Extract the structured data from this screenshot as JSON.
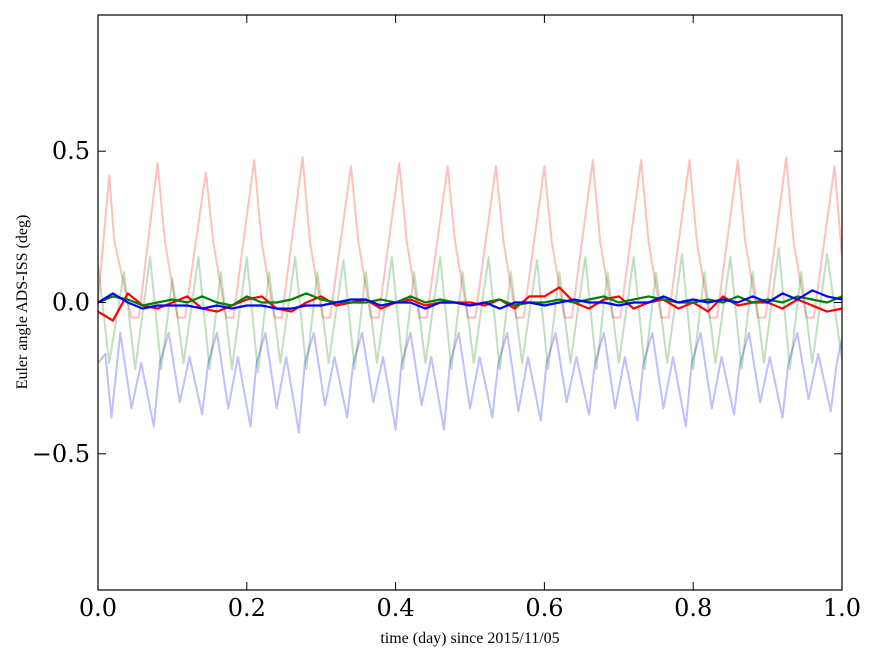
{
  "chart_data": {
    "type": "line",
    "xlabel": "time (day) since 2015/11/05",
    "ylabel": "Euler angle ADS-ISS (deg)",
    "xlim": [
      0.0,
      1.0
    ],
    "ylim": [
      -0.95,
      0.95
    ],
    "xticks": [
      {
        "value": 0.0,
        "label": "0.0"
      },
      {
        "value": 0.2,
        "label": "0.2"
      },
      {
        "value": 0.4,
        "label": "0.4"
      },
      {
        "value": 0.6,
        "label": "0.6"
      },
      {
        "value": 0.8,
        "label": "0.8"
      },
      {
        "value": 1.0,
        "label": "1.0"
      }
    ],
    "yticks": [
      {
        "value": 0.5,
        "label": "0.5"
      },
      {
        "value": 0.0,
        "label": "0.0"
      },
      {
        "value": -0.5,
        "label": "−0.5"
      }
    ],
    "grid": false,
    "series": [
      {
        "color": "#ff0000",
        "opacity": 0.25,
        "x": [
          0.0,
          0.015,
          0.022,
          0.045,
          0.055,
          0.08,
          0.09,
          0.107,
          0.117,
          0.145,
          0.155,
          0.172,
          0.182,
          0.21,
          0.22,
          0.237,
          0.247,
          0.275,
          0.285,
          0.302,
          0.312,
          0.34,
          0.35,
          0.367,
          0.377,
          0.405,
          0.415,
          0.432,
          0.442,
          0.47,
          0.48,
          0.497,
          0.507,
          0.535,
          0.545,
          0.562,
          0.572,
          0.6,
          0.61,
          0.627,
          0.637,
          0.665,
          0.675,
          0.692,
          0.702,
          0.73,
          0.74,
          0.757,
          0.767,
          0.795,
          0.805,
          0.822,
          0.832,
          0.86,
          0.87,
          0.887,
          0.897,
          0.925,
          0.935,
          0.952,
          0.962,
          0.99,
          1.0
        ],
        "y": [
          0.0,
          0.42,
          0.2,
          -0.05,
          -0.05,
          0.46,
          0.2,
          -0.05,
          -0.05,
          0.43,
          0.2,
          -0.05,
          -0.05,
          0.47,
          0.2,
          -0.05,
          -0.05,
          0.48,
          0.2,
          -0.05,
          -0.05,
          0.45,
          0.2,
          -0.05,
          -0.05,
          0.46,
          0.2,
          -0.05,
          -0.05,
          0.45,
          0.2,
          -0.05,
          -0.05,
          0.45,
          0.2,
          -0.05,
          -0.05,
          0.45,
          0.2,
          -0.05,
          -0.05,
          0.47,
          0.2,
          -0.05,
          -0.05,
          0.47,
          0.2,
          -0.05,
          -0.05,
          0.47,
          0.2,
          -0.05,
          -0.05,
          0.47,
          0.2,
          -0.05,
          -0.05,
          0.48,
          0.2,
          -0.05,
          -0.05,
          0.45,
          0.15
        ]
      },
      {
        "color": "#008000",
        "opacity": 0.25,
        "x": [
          0.0,
          0.015,
          0.035,
          0.05,
          0.07,
          0.085,
          0.1,
          0.115,
          0.135,
          0.15,
          0.165,
          0.18,
          0.2,
          0.215,
          0.23,
          0.245,
          0.265,
          0.28,
          0.295,
          0.31,
          0.33,
          0.345,
          0.36,
          0.375,
          0.395,
          0.41,
          0.425,
          0.44,
          0.46,
          0.475,
          0.49,
          0.505,
          0.525,
          0.54,
          0.555,
          0.57,
          0.59,
          0.605,
          0.62,
          0.635,
          0.655,
          0.67,
          0.685,
          0.7,
          0.72,
          0.735,
          0.75,
          0.765,
          0.785,
          0.8,
          0.815,
          0.83,
          0.85,
          0.865,
          0.88,
          0.895,
          0.915,
          0.93,
          0.945,
          0.96,
          0.98,
          1.0
        ],
        "y": [
          0.13,
          -0.2,
          0.1,
          -0.22,
          0.15,
          -0.22,
          0.08,
          -0.2,
          0.15,
          -0.22,
          0.1,
          -0.22,
          0.15,
          -0.23,
          0.1,
          -0.2,
          0.15,
          -0.22,
          0.1,
          -0.2,
          0.14,
          -0.22,
          0.1,
          -0.2,
          0.15,
          -0.22,
          0.1,
          -0.2,
          0.15,
          -0.22,
          0.1,
          -0.2,
          0.15,
          -0.22,
          0.1,
          -0.2,
          0.14,
          -0.22,
          0.1,
          -0.2,
          0.15,
          -0.22,
          0.1,
          -0.2,
          0.15,
          -0.22,
          0.1,
          -0.2,
          0.16,
          -0.22,
          0.1,
          -0.2,
          0.15,
          -0.22,
          0.1,
          -0.2,
          0.18,
          -0.22,
          0.1,
          -0.2,
          0.16,
          -0.19
        ]
      },
      {
        "color": "#0000ff",
        "opacity": 0.25,
        "x": [
          0.0,
          0.01,
          0.018,
          0.03,
          0.045,
          0.058,
          0.075,
          0.083,
          0.095,
          0.11,
          0.123,
          0.14,
          0.148,
          0.16,
          0.175,
          0.188,
          0.205,
          0.213,
          0.225,
          0.24,
          0.253,
          0.27,
          0.278,
          0.29,
          0.305,
          0.318,
          0.335,
          0.343,
          0.355,
          0.37,
          0.383,
          0.4,
          0.408,
          0.42,
          0.435,
          0.448,
          0.465,
          0.473,
          0.485,
          0.5,
          0.513,
          0.53,
          0.538,
          0.55,
          0.565,
          0.578,
          0.595,
          0.603,
          0.615,
          0.63,
          0.643,
          0.66,
          0.668,
          0.68,
          0.695,
          0.708,
          0.725,
          0.733,
          0.745,
          0.76,
          0.773,
          0.79,
          0.798,
          0.81,
          0.825,
          0.838,
          0.855,
          0.863,
          0.875,
          0.89,
          0.903,
          0.92,
          0.928,
          0.94,
          0.955,
          0.968,
          0.985,
          0.993,
          1.0
        ],
        "y": [
          -0.2,
          -0.17,
          -0.38,
          -0.1,
          -0.35,
          -0.2,
          -0.41,
          -0.2,
          -0.1,
          -0.33,
          -0.18,
          -0.37,
          -0.2,
          -0.1,
          -0.35,
          -0.18,
          -0.41,
          -0.2,
          -0.1,
          -0.35,
          -0.18,
          -0.43,
          -0.2,
          -0.1,
          -0.34,
          -0.18,
          -0.38,
          -0.2,
          -0.1,
          -0.33,
          -0.18,
          -0.42,
          -0.2,
          -0.1,
          -0.34,
          -0.18,
          -0.42,
          -0.2,
          -0.1,
          -0.35,
          -0.18,
          -0.38,
          -0.2,
          -0.1,
          -0.36,
          -0.18,
          -0.39,
          -0.2,
          -0.1,
          -0.33,
          -0.18,
          -0.37,
          -0.2,
          -0.1,
          -0.35,
          -0.18,
          -0.39,
          -0.2,
          -0.1,
          -0.35,
          -0.18,
          -0.41,
          -0.2,
          -0.1,
          -0.35,
          -0.18,
          -0.37,
          -0.2,
          -0.1,
          -0.33,
          -0.18,
          -0.38,
          -0.2,
          -0.1,
          -0.32,
          -0.17,
          -0.36,
          -0.2,
          -0.12
        ]
      },
      {
        "color": "#ff0000",
        "opacity": 1.0,
        "x": [
          0.0,
          0.02,
          0.04,
          0.06,
          0.08,
          0.1,
          0.12,
          0.14,
          0.16,
          0.18,
          0.2,
          0.22,
          0.24,
          0.26,
          0.28,
          0.3,
          0.32,
          0.34,
          0.36,
          0.38,
          0.4,
          0.42,
          0.44,
          0.46,
          0.48,
          0.5,
          0.52,
          0.54,
          0.56,
          0.58,
          0.6,
          0.62,
          0.64,
          0.66,
          0.68,
          0.7,
          0.72,
          0.74,
          0.76,
          0.78,
          0.8,
          0.82,
          0.84,
          0.86,
          0.88,
          0.9,
          0.92,
          0.94,
          0.96,
          0.98,
          1.0
        ],
        "y": [
          -0.03,
          -0.06,
          0.03,
          -0.01,
          -0.02,
          0.0,
          0.02,
          -0.02,
          -0.03,
          -0.01,
          0.01,
          0.02,
          -0.02,
          -0.03,
          0.0,
          0.02,
          -0.01,
          0.0,
          0.01,
          -0.02,
          0.0,
          0.01,
          -0.01,
          0.0,
          0.0,
          0.0,
          -0.01,
          0.01,
          -0.02,
          0.02,
          0.02,
          0.05,
          0.0,
          -0.02,
          0.01,
          0.02,
          -0.02,
          0.0,
          0.01,
          -0.02,
          0.0,
          -0.03,
          0.02,
          -0.01,
          0.0,
          0.0,
          -0.02,
          0.01,
          -0.01,
          -0.03,
          -0.02
        ]
      },
      {
        "color": "#008000",
        "opacity": 1.0,
        "x": [
          0.0,
          0.02,
          0.04,
          0.06,
          0.08,
          0.1,
          0.12,
          0.14,
          0.16,
          0.18,
          0.2,
          0.22,
          0.24,
          0.26,
          0.28,
          0.3,
          0.32,
          0.34,
          0.36,
          0.38,
          0.4,
          0.42,
          0.44,
          0.46,
          0.48,
          0.5,
          0.52,
          0.54,
          0.56,
          0.58,
          0.6,
          0.62,
          0.64,
          0.66,
          0.68,
          0.7,
          0.72,
          0.74,
          0.76,
          0.78,
          0.8,
          0.82,
          0.84,
          0.86,
          0.88,
          0.9,
          0.92,
          0.94,
          0.96,
          0.98,
          1.0
        ],
        "y": [
          0.0,
          0.02,
          0.01,
          -0.01,
          0.0,
          0.01,
          0.0,
          0.02,
          0.0,
          -0.01,
          0.02,
          0.0,
          0.0,
          0.01,
          0.03,
          0.01,
          0.0,
          0.0,
          0.0,
          0.01,
          0.0,
          0.02,
          0.0,
          0.01,
          0.0,
          -0.01,
          0.0,
          0.01,
          -0.01,
          0.0,
          0.0,
          0.01,
          0.0,
          0.01,
          0.02,
          0.0,
          0.01,
          0.02,
          0.01,
          0.0,
          0.0,
          0.01,
          0.0,
          0.02,
          0.0,
          0.01,
          0.0,
          0.02,
          0.01,
          0.0,
          0.02
        ]
      },
      {
        "color": "#0000ff",
        "opacity": 1.0,
        "x": [
          0.0,
          0.02,
          0.04,
          0.06,
          0.08,
          0.1,
          0.12,
          0.14,
          0.16,
          0.18,
          0.2,
          0.22,
          0.24,
          0.26,
          0.28,
          0.3,
          0.32,
          0.34,
          0.36,
          0.38,
          0.4,
          0.42,
          0.44,
          0.46,
          0.48,
          0.5,
          0.52,
          0.54,
          0.56,
          0.58,
          0.6,
          0.62,
          0.64,
          0.66,
          0.68,
          0.7,
          0.72,
          0.74,
          0.76,
          0.78,
          0.8,
          0.82,
          0.84,
          0.86,
          0.88,
          0.9,
          0.92,
          0.94,
          0.96,
          0.98,
          1.0
        ],
        "y": [
          0.0,
          0.03,
          0.0,
          -0.02,
          -0.01,
          -0.01,
          -0.01,
          -0.02,
          -0.01,
          -0.02,
          -0.01,
          -0.01,
          -0.02,
          -0.02,
          -0.01,
          -0.01,
          0.0,
          0.01,
          0.01,
          -0.01,
          0.0,
          0.0,
          -0.02,
          0.0,
          0.0,
          -0.01,
          0.0,
          -0.02,
          0.0,
          0.0,
          -0.01,
          0.0,
          0.01,
          0.0,
          0.0,
          -0.01,
          0.0,
          0.0,
          0.02,
          0.0,
          0.01,
          0.0,
          0.01,
          0.0,
          0.02,
          0.0,
          0.03,
          0.01,
          0.04,
          0.02,
          0.01
        ]
      }
    ]
  }
}
